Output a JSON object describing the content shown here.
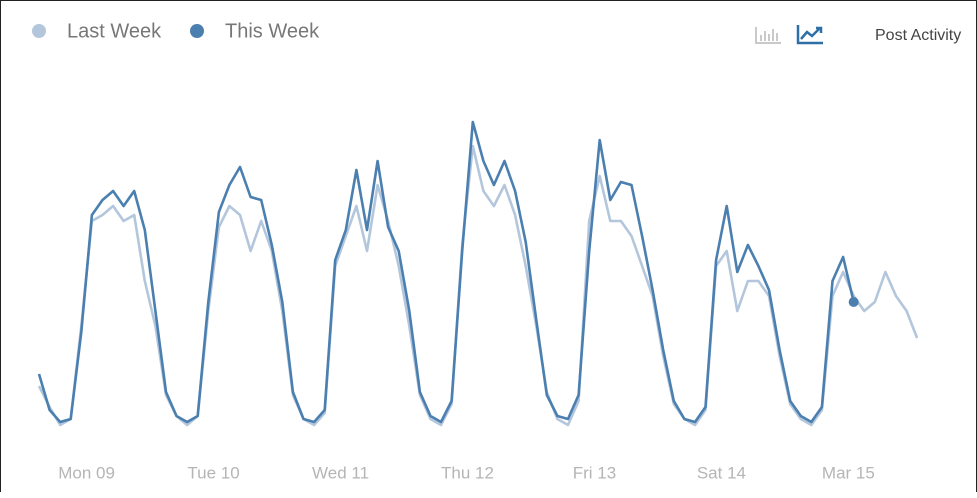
{
  "chart_data": {
    "type": "line",
    "title": "Post Activity",
    "x": [
      0,
      2,
      4,
      6,
      8,
      10,
      12,
      14,
      16,
      18,
      20,
      22,
      24,
      26,
      28,
      30,
      32,
      34,
      36,
      38,
      40,
      42,
      44,
      46,
      48,
      50,
      52,
      54,
      56,
      58,
      60,
      62,
      64,
      66,
      68,
      70,
      72,
      74,
      76,
      78,
      80,
      82,
      84,
      86,
      88,
      90,
      92,
      94,
      96,
      98,
      100,
      102,
      104,
      106,
      108,
      110,
      112,
      114,
      116,
      118,
      120,
      122,
      124,
      126,
      128,
      130,
      132,
      134,
      136,
      138,
      140,
      142,
      144,
      146,
      148,
      150,
      152,
      154,
      156,
      158,
      160,
      162,
      164,
      166
    ],
    "xticks": [
      {
        "value": 9,
        "label": "Mon 09"
      },
      {
        "value": 33,
        "label": "Tue 10"
      },
      {
        "value": 57,
        "label": "Wed 11"
      },
      {
        "value": 81,
        "label": "Thu 12"
      },
      {
        "value": 105,
        "label": "Fri 13"
      },
      {
        "value": 129,
        "label": "Sat 14"
      },
      {
        "value": 153,
        "label": "Mar 15"
      }
    ],
    "series": [
      {
        "name": "Last Week",
        "color": "#b3c6dc",
        "values": [
          15,
          8,
          2,
          4,
          35,
          70,
          72,
          75,
          70,
          72,
          50,
          35,
          12,
          5,
          2,
          5,
          40,
          68,
          75,
          72,
          60,
          70,
          60,
          40,
          12,
          4,
          2,
          6,
          55,
          65,
          75,
          60,
          82,
          70,
          55,
          35,
          12,
          4,
          2,
          9,
          62,
          95,
          80,
          75,
          82,
          72,
          55,
          35,
          13,
          4,
          2,
          10,
          70,
          85,
          70,
          70,
          65,
          55,
          45,
          25,
          9,
          4,
          2,
          7,
          55,
          60,
          40,
          50,
          50,
          45,
          25,
          9,
          4,
          2,
          7,
          45,
          53,
          45,
          40,
          43,
          53,
          45,
          40,
          31
        ]
      },
      {
        "name": "This Week",
        "color": "#4a7fb0",
        "values": [
          19,
          7,
          3,
          4,
          33,
          72,
          77,
          80,
          75,
          80,
          67,
          40,
          13,
          5,
          3,
          5,
          43,
          73,
          82,
          88,
          78,
          77,
          62,
          43,
          13,
          4,
          3,
          7,
          57,
          67,
          87,
          67,
          90,
          68,
          60,
          40,
          13,
          5,
          3,
          10,
          60,
          103,
          90,
          82,
          90,
          80,
          63,
          37,
          12,
          5,
          4,
          12,
          60,
          97,
          77,
          83,
          82,
          65,
          47,
          27,
          10,
          4,
          3,
          8,
          57,
          75,
          53,
          62,
          55,
          47,
          27,
          10,
          5,
          3,
          8,
          50,
          58,
          43,
          null,
          null,
          null,
          null,
          null,
          null
        ]
      }
    ]
  }
}
